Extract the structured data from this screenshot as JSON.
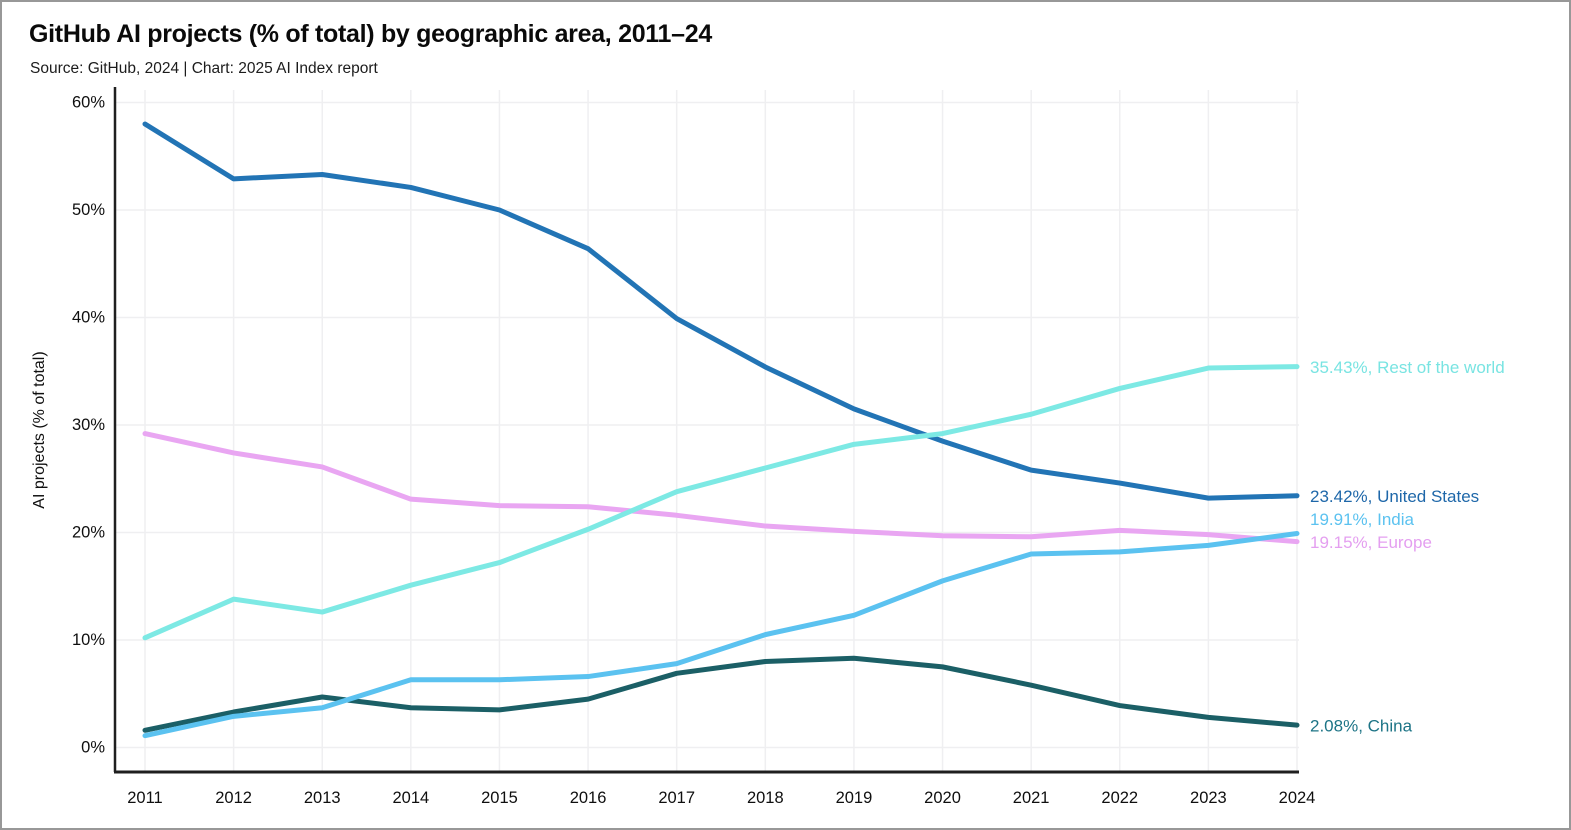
{
  "page": {
    "title": "GitHub AI projects (% of total) by geographic area, 2011–24",
    "subtitle": "Source: GitHub, 2024 | Chart: 2025 AI Index report"
  },
  "colors": {
    "grid": "#efeff1",
    "axis": "#1f1f1f",
    "tick_text": "#0f0f0f",
    "background": "#ffffff"
  },
  "chart_data": {
    "type": "line",
    "title": "GitHub AI projects (% of total) by geographic area, 2011–24",
    "xlabel": "",
    "ylabel": "AI projects (% of total)",
    "ylim": [
      0,
      60
    ],
    "grid": true,
    "legend_position": "line-end-labels-right",
    "yticks": [
      {
        "value": 0,
        "label": "0%"
      },
      {
        "value": 10,
        "label": "10%"
      },
      {
        "value": 20,
        "label": "20%"
      },
      {
        "value": 30,
        "label": "30%"
      },
      {
        "value": 40,
        "label": "40%"
      },
      {
        "value": 50,
        "label": "50%"
      },
      {
        "value": 60,
        "label": "60%"
      }
    ],
    "categories": [
      "2011",
      "2012",
      "2013",
      "2014",
      "2015",
      "2016",
      "2017",
      "2018",
      "2019",
      "2020",
      "2021",
      "2022",
      "2023",
      "2024"
    ],
    "series": [
      {
        "name": "United States",
        "color": "#2274b5",
        "label_color": "#1e67a9",
        "end_label": "23.42%, United States",
        "values": [
          58.0,
          52.9,
          53.3,
          52.1,
          50.0,
          46.4,
          39.9,
          35.4,
          31.5,
          28.5,
          25.8,
          24.6,
          23.2,
          23.42
        ]
      },
      {
        "name": "Europe",
        "color": "#e9a6f2",
        "label_color": "#e49ff0",
        "end_label": "19.15%, Europe",
        "values": [
          29.2,
          27.4,
          26.1,
          23.1,
          22.5,
          22.4,
          21.6,
          20.6,
          20.1,
          19.7,
          19.6,
          20.2,
          19.8,
          19.15
        ]
      },
      {
        "name": "Rest of the world",
        "color": "#7de9e4",
        "label_color": "#79e4e2",
        "end_label": "35.43%, Rest of the world",
        "values": [
          10.2,
          13.8,
          12.6,
          15.1,
          17.2,
          20.3,
          23.8,
          26.0,
          28.2,
          29.2,
          31.0,
          33.4,
          35.3,
          35.43
        ]
      },
      {
        "name": "China",
        "color": "#1b5f66",
        "label_color": "#1d7486",
        "end_label": "2.08%, China",
        "values": [
          1.6,
          3.3,
          4.7,
          3.7,
          3.5,
          4.5,
          6.9,
          8.0,
          8.3,
          7.5,
          5.8,
          3.9,
          2.8,
          2.08
        ]
      },
      {
        "name": "India",
        "color": "#5bc2f0",
        "label_color": "#5bc2f0",
        "end_label": "19.91%, India",
        "values": [
          1.1,
          2.9,
          3.7,
          6.3,
          6.3,
          6.6,
          7.8,
          10.5,
          12.3,
          15.5,
          18.0,
          18.2,
          18.8,
          19.91
        ]
      }
    ]
  }
}
